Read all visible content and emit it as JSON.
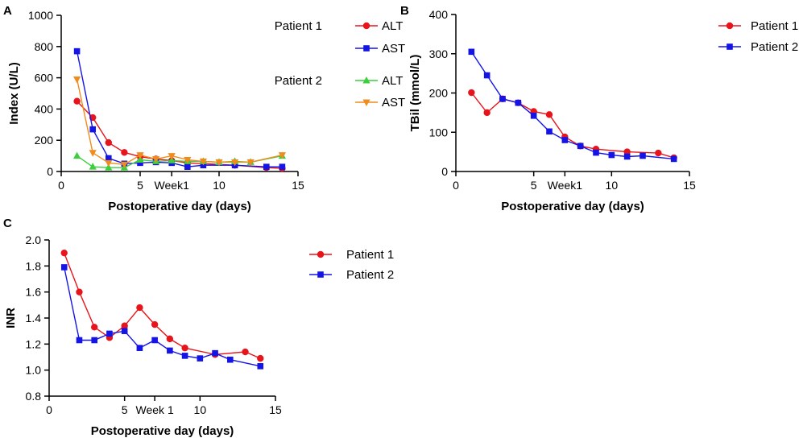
{
  "chart_data": [
    {
      "panel": "A",
      "type": "line",
      "xlabel": "Postoperative day (days)",
      "ylabel": "Index (U/L)",
      "xlim": [
        0,
        15
      ],
      "ylim": [
        0,
        1000
      ],
      "xticks": [
        {
          "value": 0,
          "label": "0"
        },
        {
          "value": 5,
          "label": "5"
        },
        {
          "value": 7,
          "label": "Week1"
        },
        {
          "value": 10,
          "label": "10"
        },
        {
          "value": 15,
          "label": "15"
        }
      ],
      "yticks": [
        {
          "value": 0,
          "label": "0"
        },
        {
          "value": 200,
          "label": "200"
        },
        {
          "value": 400,
          "label": "400"
        },
        {
          "value": 600,
          "label": "600"
        },
        {
          "value": 800,
          "label": "800"
        },
        {
          "value": 1000,
          "label": "1000"
        }
      ],
      "legend_groups": [
        {
          "title": "Patient 1",
          "entries": [
            {
              "label": "ALT",
              "color": "#e8141b",
              "marker": "circle"
            },
            {
              "label": "AST",
              "color": "#1414e6",
              "marker": "square"
            }
          ]
        },
        {
          "title": "Patient 2",
          "entries": [
            {
              "label": "ALT",
              "color": "#3ccf3c",
              "marker": "triangle-up"
            },
            {
              "label": "AST",
              "color": "#f08c1e",
              "marker": "triangle-down"
            }
          ]
        }
      ],
      "series": [
        {
          "name": "Patient 1 ALT",
          "color": "#e8141b",
          "marker": "circle",
          "x": [
            1,
            2,
            3,
            4,
            5,
            6,
            7,
            8,
            9,
            11,
            13,
            14
          ],
          "y": [
            450,
            345,
            185,
            122,
            95,
            80,
            70,
            55,
            50,
            40,
            25,
            20
          ]
        },
        {
          "name": "Patient 1 AST",
          "color": "#1414e6",
          "marker": "square",
          "x": [
            1,
            2,
            3,
            4,
            5,
            6,
            7,
            8,
            9,
            11,
            13,
            14
          ],
          "y": [
            770,
            270,
            85,
            50,
            55,
            60,
            55,
            30,
            40,
            40,
            30,
            30
          ]
        },
        {
          "name": "Patient 2 ALT",
          "color": "#3ccf3c",
          "marker": "triangle-up",
          "x": [
            1,
            2,
            3,
            4,
            5,
            6,
            7,
            8,
            9,
            10,
            11,
            12,
            14
          ],
          "y": [
            100,
            30,
            25,
            25,
            75,
            65,
            70,
            65,
            65,
            60,
            65,
            60,
            100
          ]
        },
        {
          "name": "Patient 2 AST",
          "color": "#f08c1e",
          "marker": "triangle-down",
          "x": [
            1,
            2,
            3,
            4,
            5,
            6,
            7,
            8,
            9,
            10,
            11,
            12,
            14
          ],
          "y": [
            590,
            120,
            55,
            45,
            105,
            80,
            100,
            75,
            65,
            60,
            60,
            60,
            105
          ]
        }
      ]
    },
    {
      "panel": "B",
      "type": "line",
      "xlabel": "Postoperative day (days)",
      "ylabel": "TBil (mmol/L)",
      "xlim": [
        0,
        15
      ],
      "ylim": [
        0,
        400
      ],
      "xticks": [
        {
          "value": 0,
          "label": "0"
        },
        {
          "value": 5,
          "label": "5"
        },
        {
          "value": 7,
          "label": "Week1"
        },
        {
          "value": 10,
          "label": "10"
        },
        {
          "value": 15,
          "label": "15"
        }
      ],
      "yticks": [
        {
          "value": 0,
          "label": "0"
        },
        {
          "value": 100,
          "label": "100"
        },
        {
          "value": 200,
          "label": "200"
        },
        {
          "value": 300,
          "label": "300"
        },
        {
          "value": 400,
          "label": "400"
        }
      ],
      "legend_groups": [
        {
          "title": "",
          "entries": [
            {
              "label": "Patient 1",
              "color": "#e8141b",
              "marker": "circle"
            },
            {
              "label": "Patient 2",
              "color": "#1414e6",
              "marker": "square"
            }
          ]
        }
      ],
      "series": [
        {
          "name": "Patient 1",
          "color": "#e8141b",
          "marker": "circle",
          "x": [
            1,
            2,
            3,
            4,
            5,
            6,
            7,
            8,
            9,
            11,
            13,
            14
          ],
          "y": [
            201,
            150,
            185,
            175,
            153,
            145,
            88,
            65,
            57,
            50,
            47,
            35
          ]
        },
        {
          "name": "Patient 2",
          "color": "#1414e6",
          "marker": "square",
          "x": [
            1,
            2,
            3,
            4,
            5,
            6,
            7,
            8,
            9,
            10,
            11,
            12,
            14
          ],
          "y": [
            305,
            245,
            185,
            175,
            142,
            102,
            80,
            65,
            48,
            42,
            38,
            40,
            32
          ]
        }
      ]
    },
    {
      "panel": "C",
      "type": "line",
      "xlabel": "Postoperative day (days)",
      "ylabel": "INR",
      "xlim": [
        0,
        15
      ],
      "ylim": [
        0.8,
        2.0
      ],
      "xticks": [
        {
          "value": 0,
          "label": "0"
        },
        {
          "value": 5,
          "label": "5"
        },
        {
          "value": 7,
          "label": "Week 1"
        },
        {
          "value": 10,
          "label": "10"
        },
        {
          "value": 15,
          "label": "15"
        }
      ],
      "yticks": [
        {
          "value": 0.8,
          "label": "0.8"
        },
        {
          "value": 1.0,
          "label": "1.0"
        },
        {
          "value": 1.2,
          "label": "1.2"
        },
        {
          "value": 1.4,
          "label": "1.4"
        },
        {
          "value": 1.6,
          "label": "1.6"
        },
        {
          "value": 1.8,
          "label": "1.8"
        },
        {
          "value": 2.0,
          "label": "2.0"
        }
      ],
      "legend_groups": [
        {
          "title": "",
          "entries": [
            {
              "label": "Patient 1",
              "color": "#e8141b",
              "marker": "circle"
            },
            {
              "label": "Patient 2",
              "color": "#1414e6",
              "marker": "square"
            }
          ]
        }
      ],
      "series": [
        {
          "name": "Patient 1",
          "color": "#e8141b",
          "marker": "circle",
          "x": [
            1,
            2,
            3,
            4,
            5,
            6,
            7,
            8,
            9,
            11,
            13,
            14
          ],
          "y": [
            1.9,
            1.6,
            1.33,
            1.25,
            1.34,
            1.48,
            1.35,
            1.24,
            1.17,
            1.12,
            1.14,
            1.09
          ]
        },
        {
          "name": "Patient 2",
          "color": "#1414e6",
          "marker": "square",
          "x": [
            1,
            2,
            3,
            4,
            5,
            6,
            7,
            8,
            9,
            10,
            11,
            12,
            14
          ],
          "y": [
            1.79,
            1.23,
            1.23,
            1.28,
            1.3,
            1.17,
            1.23,
            1.15,
            1.11,
            1.09,
            1.13,
            1.08,
            1.03
          ]
        }
      ]
    }
  ]
}
